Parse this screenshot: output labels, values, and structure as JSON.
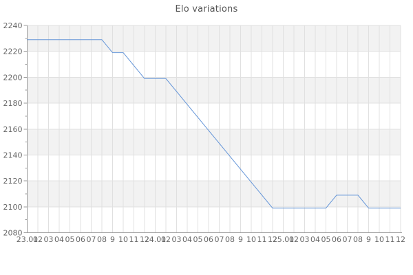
{
  "chart_data": {
    "type": "line",
    "title": "Elo variations",
    "x_labels": [
      "23.01",
      "02",
      "03",
      "04",
      "05",
      "06",
      "07",
      "08",
      "9",
      "10",
      "11",
      "12",
      "24.01",
      "02",
      "03",
      "04",
      "05",
      "06",
      "07",
      "08",
      "9",
      "10",
      "11",
      "12",
      "25.01",
      "02",
      "03",
      "04",
      "05",
      "06",
      "07",
      "08",
      "9",
      "10",
      "11",
      "12"
    ],
    "values": [
      2229,
      2229,
      2229,
      2229,
      2229,
      2229,
      2229,
      2229,
      2219,
      2219,
      2209,
      2199,
      2199,
      2199,
      2189,
      2179,
      2169,
      2159,
      2149,
      2139,
      2129,
      2119,
      2109,
      2099,
      2099,
      2099,
      2099,
      2099,
      2099,
      2109,
      2109,
      2109,
      2099,
      2099,
      2099,
      2099
    ],
    "ylim": [
      2080,
      2240
    ],
    "ytick_labels": [
      "2080",
      "2100",
      "2120",
      "2140",
      "2160",
      "2180",
      "2200",
      "2220",
      "2240"
    ],
    "ytick_major_step": 20,
    "ytick_minor_step": 10,
    "grid": true,
    "legend": false,
    "band_style": "alternating-horizontal"
  },
  "colors": {
    "line": "#6495d8",
    "band": "#f2f2f2",
    "grid": "#e0e0e0",
    "axis": "#999999",
    "tick_label": "#666666",
    "title": "#555555"
  }
}
